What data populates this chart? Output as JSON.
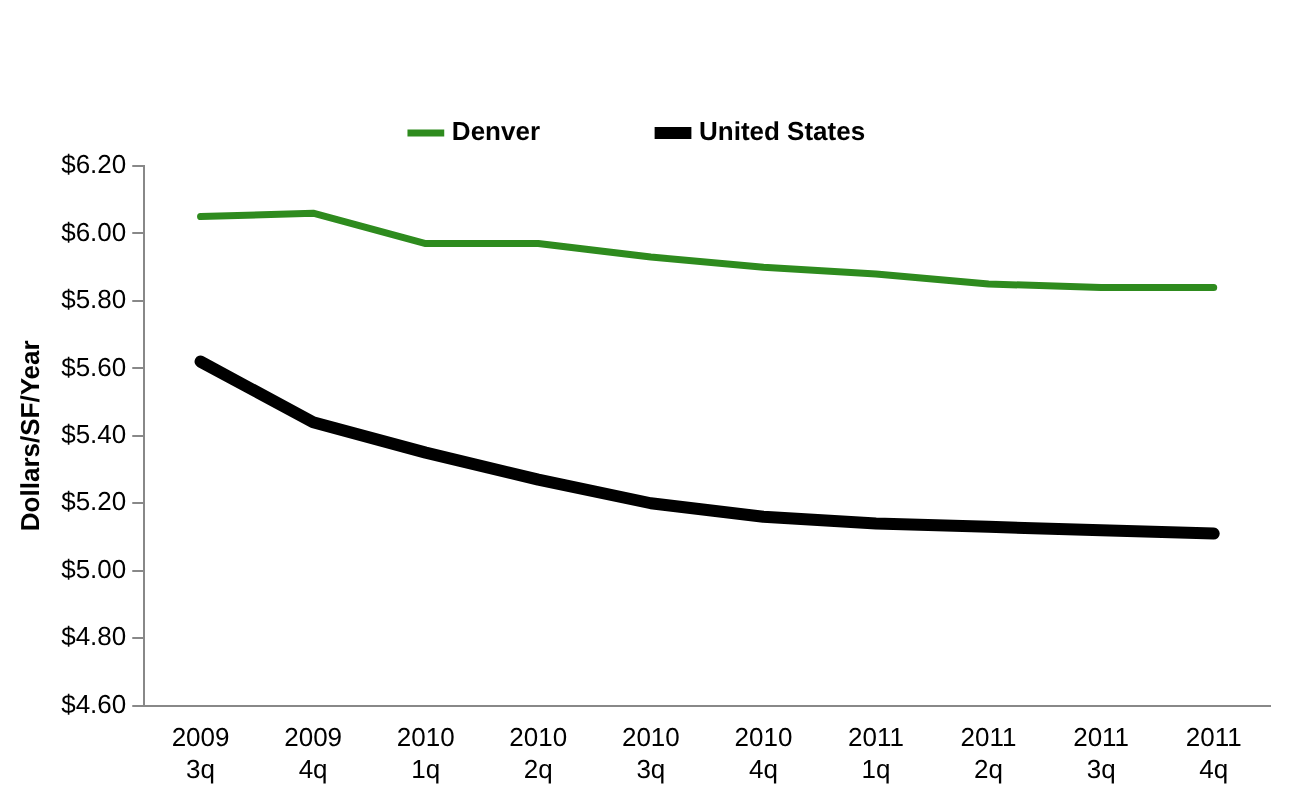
{
  "chart_data": {
    "type": "line",
    "categories": [
      "2009 3q",
      "2009 4q",
      "2010 1q",
      "2010 2q",
      "2010 3q",
      "2010 4q",
      "2011 1q",
      "2011 2q",
      "2011 3q",
      "2011 4q"
    ],
    "series": [
      {
        "name": "Denver",
        "color": "#2e8b1e",
        "values": [
          6.05,
          6.06,
          5.97,
          5.97,
          5.93,
          5.9,
          5.88,
          5.85,
          5.84,
          5.84
        ]
      },
      {
        "name": "United States",
        "color": "#000000",
        "values": [
          5.62,
          5.44,
          5.35,
          5.27,
          5.2,
          5.16,
          5.14,
          5.13,
          5.12,
          5.11
        ]
      }
    ],
    "ylabel": "Dollars/SF/Year",
    "ylim": [
      4.6,
      6.2
    ],
    "yticks": [
      {
        "value": 4.6,
        "label": "$4.60"
      },
      {
        "value": 4.8,
        "label": "$4.80"
      },
      {
        "value": 5.0,
        "label": "$5.00"
      },
      {
        "value": 5.2,
        "label": "$5.20"
      },
      {
        "value": 5.4,
        "label": "$5.40"
      },
      {
        "value": 5.6,
        "label": "$5.60"
      },
      {
        "value": 5.8,
        "label": "$5.80"
      },
      {
        "value": 6.0,
        "label": "$6.00"
      },
      {
        "value": 6.2,
        "label": "$6.20"
      }
    ],
    "grid": false,
    "legend": "top",
    "marker": "none",
    "line_style": "solid"
  }
}
